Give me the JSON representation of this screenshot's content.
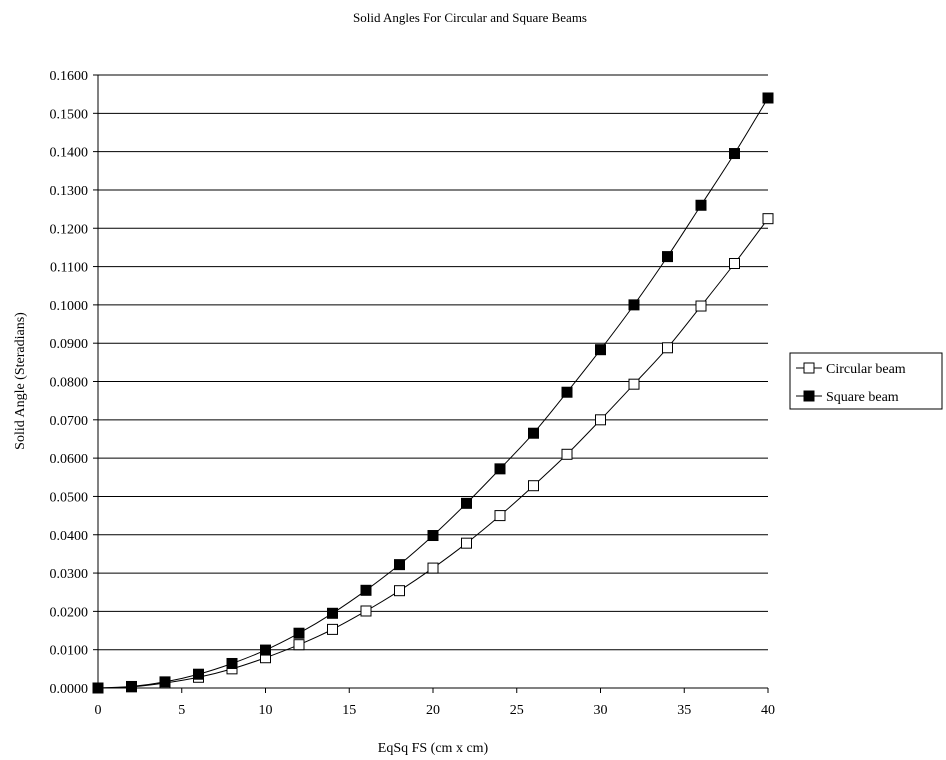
{
  "chart_data": {
    "type": "line",
    "title": "Solid Angles For Circular and Square Beams",
    "xlabel": "EqSq FS (cm x cm)",
    "ylabel": "Solid Angle (Steradians)",
    "xlim": [
      0,
      40
    ],
    "ylim": [
      0,
      0.16
    ],
    "x_ticks": [
      "0",
      "5",
      "10",
      "15",
      "20",
      "25",
      "30",
      "35",
      "40"
    ],
    "y_ticks": [
      "0.0000",
      "0.0100",
      "0.0200",
      "0.0300",
      "0.0400",
      "0.0500",
      "0.0600",
      "0.0700",
      "0.0800",
      "0.0900",
      "0.1000",
      "0.1100",
      "0.1200",
      "0.1300",
      "0.1400",
      "0.1500",
      "0.1600"
    ],
    "grid": "horizontal",
    "legend_position": "right",
    "x": [
      0,
      2,
      4,
      6,
      8,
      10,
      12,
      14,
      16,
      18,
      20,
      22,
      24,
      26,
      28,
      30,
      32,
      34,
      36,
      38,
      40
    ],
    "series": [
      {
        "name": "Circular beam",
        "marker": "open-square",
        "values": [
          0.0,
          0.0003,
          0.0013,
          0.0028,
          0.005,
          0.0079,
          0.0113,
          0.0153,
          0.0201,
          0.0254,
          0.0313,
          0.0378,
          0.045,
          0.0528,
          0.061,
          0.07,
          0.0793,
          0.0888,
          0.0997,
          0.1108,
          0.1225
        ]
      },
      {
        "name": "Square beam",
        "marker": "filled-square",
        "values": [
          0.0,
          0.0004,
          0.0016,
          0.0036,
          0.0064,
          0.0099,
          0.0143,
          0.0195,
          0.0255,
          0.0322,
          0.0398,
          0.0482,
          0.0572,
          0.0665,
          0.0772,
          0.0883,
          0.1,
          0.1126,
          0.126,
          0.1395,
          0.154
        ]
      }
    ],
    "colors": {
      "line": "#000000",
      "grid": "#000000",
      "background": "#ffffff"
    }
  }
}
